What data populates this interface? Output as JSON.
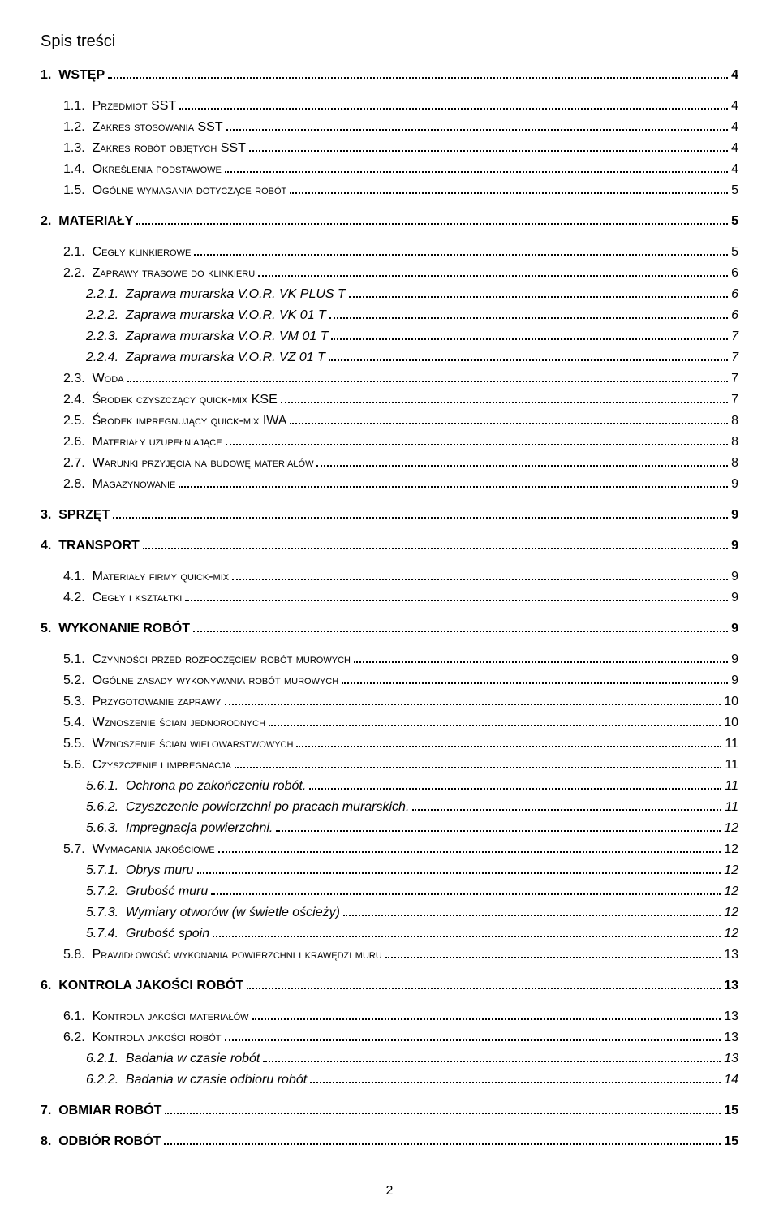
{
  "title": "Spis treści",
  "page_number": "2",
  "entries": [
    {
      "level": 1,
      "num": "1.",
      "text": "WSTĘP",
      "page": "4"
    },
    {
      "level": 2,
      "num": "1.1.",
      "text": "Przedmiot SST",
      "page": "4"
    },
    {
      "level": 2,
      "num": "1.2.",
      "text": "Zakres stosowania SST",
      "page": "4"
    },
    {
      "level": 2,
      "num": "1.3.",
      "text": "Zakres robót objętych SST",
      "page": "4"
    },
    {
      "level": 2,
      "num": "1.4.",
      "text": "Określenia podstawowe",
      "page": "4"
    },
    {
      "level": 2,
      "num": "1.5.",
      "text": "Ogólne wymagania dotyczące robót",
      "page": "5"
    },
    {
      "level": 1,
      "num": "2.",
      "text": "MATERIAŁY",
      "page": "5"
    },
    {
      "level": 2,
      "num": "2.1.",
      "text": "Cegły klinkierowe",
      "page": "5"
    },
    {
      "level": 2,
      "num": "2.2.",
      "text": "Zaprawy trasowe do klinkieru",
      "page": "6"
    },
    {
      "level": 3,
      "num": "2.2.1.",
      "text": "Zaprawa murarska V.O.R. VK PLUS T",
      "page": "6"
    },
    {
      "level": 3,
      "num": "2.2.2.",
      "text": "Zaprawa murarska V.O.R. VK 01 T",
      "page": "6"
    },
    {
      "level": 3,
      "num": "2.2.3.",
      "text": "Zaprawa murarska V.O.R. VM 01 T",
      "page": "7"
    },
    {
      "level": 3,
      "num": "2.2.4.",
      "text": "Zaprawa murarska V.O.R. VZ 01 T",
      "page": "7"
    },
    {
      "level": 2,
      "num": "2.3.",
      "text": "Woda",
      "page": "7"
    },
    {
      "level": 2,
      "num": "2.4.",
      "text": "Środek czyszczący quick-mix KSE",
      "page": "7"
    },
    {
      "level": 2,
      "num": "2.5.",
      "text": "Środek impregnujący quick-mix IWA",
      "page": "8"
    },
    {
      "level": 2,
      "num": "2.6.",
      "text": "Materiały uzupełniające",
      "page": "8"
    },
    {
      "level": 2,
      "num": "2.7.",
      "text": "Warunki przyjęcia na budowę materiałów",
      "page": "8"
    },
    {
      "level": 2,
      "num": "2.8.",
      "text": "Magazynowanie",
      "page": "9"
    },
    {
      "level": 1,
      "num": "3.",
      "text": "SPRZĘT",
      "page": "9"
    },
    {
      "level": 1,
      "num": "4.",
      "text": "TRANSPORT",
      "page": "9"
    },
    {
      "level": 2,
      "num": "4.1.",
      "text": "Materiały firmy quick-mix",
      "page": "9"
    },
    {
      "level": 2,
      "num": "4.2.",
      "text": "Cegły i kształtki",
      "page": "9"
    },
    {
      "level": 1,
      "num": "5.",
      "text": "WYKONANIE ROBÓT",
      "page": "9"
    },
    {
      "level": 2,
      "num": "5.1.",
      "text": "Czynności przed rozpoczęciem robót murowych",
      "page": "9"
    },
    {
      "level": 2,
      "num": "5.2.",
      "text": "Ogólne zasady wykonywania robót murowych",
      "page": "9"
    },
    {
      "level": 2,
      "num": "5.3.",
      "text": "Przygotowanie zaprawy",
      "page": "10"
    },
    {
      "level": 2,
      "num": "5.4.",
      "text": "Wznoszenie ścian jednorodnych",
      "page": "10"
    },
    {
      "level": 2,
      "num": "5.5.",
      "text": "Wznoszenie ścian wielowarstwowych",
      "page": "11"
    },
    {
      "level": 2,
      "num": "5.6.",
      "text": "Czyszczenie i impregnacja",
      "page": "11"
    },
    {
      "level": 3,
      "num": "5.6.1.",
      "text": "Ochrona po zakończeniu robót.",
      "page": "11"
    },
    {
      "level": 3,
      "num": "5.6.2.",
      "text": "Czyszczenie powierzchni po pracach murarskich.",
      "page": "11"
    },
    {
      "level": 3,
      "num": "5.6.3.",
      "text": "Impregnacja powierzchni.",
      "page": "12"
    },
    {
      "level": 2,
      "num": "5.7.",
      "text": "Wymagania jakościowe",
      "page": "12"
    },
    {
      "level": 3,
      "num": "5.7.1.",
      "text": "Obrys muru",
      "page": "12"
    },
    {
      "level": 3,
      "num": "5.7.2.",
      "text": "Grubość muru",
      "page": "12"
    },
    {
      "level": 3,
      "num": "5.7.3.",
      "text": "Wymiary otworów (w świetle ościeży)",
      "page": "12"
    },
    {
      "level": 3,
      "num": "5.7.4.",
      "text": "Grubość spoin",
      "page": "12"
    },
    {
      "level": 2,
      "num": "5.8.",
      "text": "Prawidłowość wykonania powierzchni i krawędzi muru",
      "page": "13"
    },
    {
      "level": 1,
      "num": "6.",
      "text": "KONTROLA JAKOŚCI ROBÓT",
      "page": "13"
    },
    {
      "level": 2,
      "num": "6.1.",
      "text": "Kontrola jakości materiałów",
      "page": "13"
    },
    {
      "level": 2,
      "num": "6.2.",
      "text": "Kontrola jakości robót",
      "page": "13"
    },
    {
      "level": 3,
      "num": "6.2.1.",
      "text": "Badania w czasie robót",
      "page": "13"
    },
    {
      "level": 3,
      "num": "6.2.2.",
      "text": "Badania w czasie odbioru robót",
      "page": "14"
    },
    {
      "level": 1,
      "num": "7.",
      "text": "OBMIAR ROBÓT",
      "page": "15"
    },
    {
      "level": 1,
      "num": "8.",
      "text": "ODBIÓR ROBÓT",
      "page": "15"
    }
  ]
}
